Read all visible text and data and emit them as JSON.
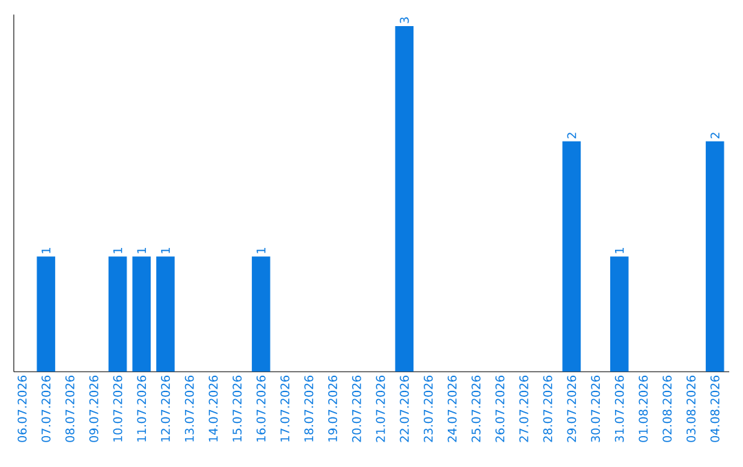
{
  "chart_data": {
    "type": "bar",
    "categories": [
      "06.07.2026",
      "07.07.2026",
      "08.07.2026",
      "09.07.2026",
      "10.07.2026",
      "11.07.2026",
      "12.07.2026",
      "13.07.2026",
      "14.07.2026",
      "15.07.2026",
      "16.07.2026",
      "17.07.2026",
      "18.07.2026",
      "19.07.2026",
      "20.07.2026",
      "21.07.2026",
      "22.07.2026",
      "23.07.2026",
      "24.07.2026",
      "25.07.2026",
      "26.07.2026",
      "27.07.2026",
      "28.07.2026",
      "29.07.2026",
      "30.07.2026",
      "31.07.2026",
      "01.08.2026",
      "02.08.2026",
      "03.08.2026",
      "04.08.2026"
    ],
    "values": [
      0,
      1,
      0,
      0,
      1,
      1,
      1,
      0,
      0,
      0,
      1,
      0,
      0,
      0,
      0,
      0,
      3,
      0,
      0,
      0,
      0,
      0,
      0,
      2,
      0,
      1,
      0,
      0,
      0,
      2
    ],
    "value_labels": [
      null,
      "1",
      null,
      null,
      "1",
      "1",
      "1",
      null,
      null,
      null,
      "1",
      null,
      null,
      null,
      null,
      null,
      "3",
      null,
      null,
      null,
      null,
      null,
      null,
      "2",
      null,
      "1",
      null,
      null,
      null,
      "2"
    ],
    "color": "#0a7ae0",
    "ylim": [
      0,
      3.1
    ],
    "tick_labels": "x",
    "grid": false
  }
}
